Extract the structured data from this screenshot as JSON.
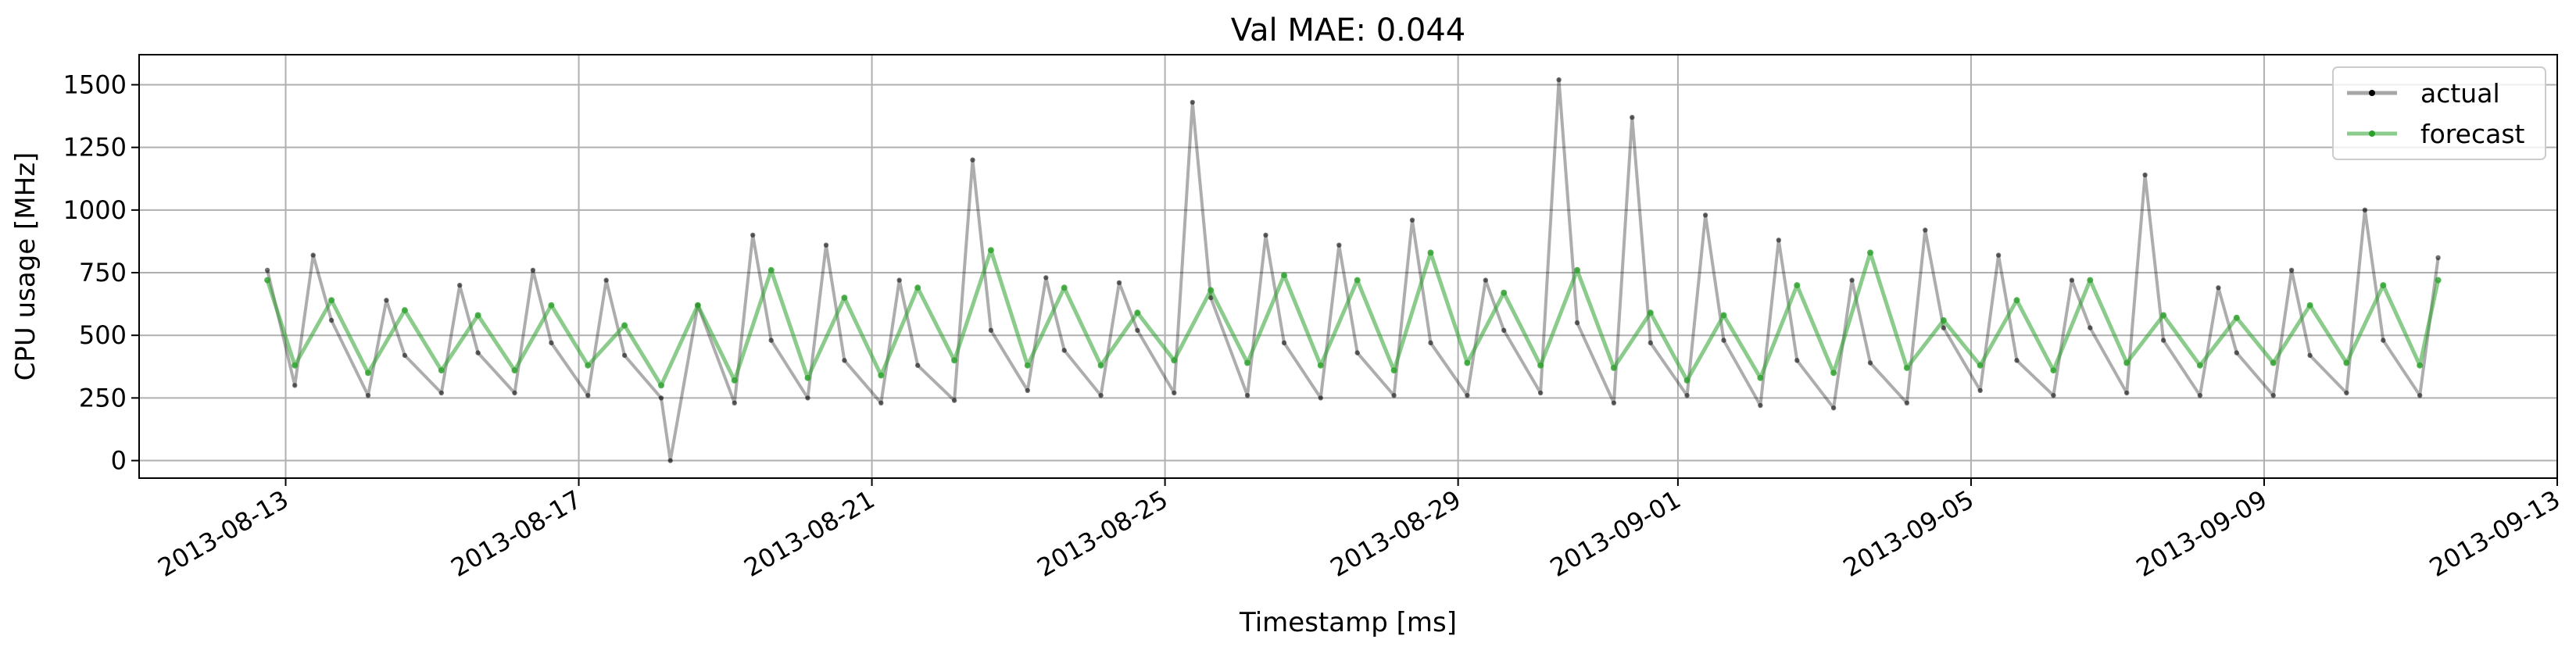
{
  "chart_data": {
    "type": "line",
    "title": "Val MAE: 0.044",
    "xlabel": "Timestamp [ms]",
    "ylabel": "CPU usage [MHz]",
    "xlim": [
      "2013-08-11",
      "2013-09-13"
    ],
    "ylim": [
      -70,
      1620
    ],
    "x_ticks": [
      "2013-08-13",
      "2013-08-17",
      "2013-08-21",
      "2013-08-25",
      "2013-08-29",
      "2013-09-01",
      "2013-09-05",
      "2013-09-09",
      "2013-09-13"
    ],
    "y_ticks": [
      0,
      250,
      500,
      750,
      1000,
      1250,
      1500
    ],
    "grid": true,
    "legend_position": "top-right",
    "series": [
      {
        "name": "actual",
        "color": "#000000",
        "x": [
          "2013-08-12T18:00",
          "2013-08-13T03:00",
          "2013-08-13T09:00",
          "2013-08-13T15:00",
          "2013-08-14T03:00",
          "2013-08-14T09:00",
          "2013-08-14T15:00",
          "2013-08-15T03:00",
          "2013-08-15T09:00",
          "2013-08-15T15:00",
          "2013-08-16T03:00",
          "2013-08-16T09:00",
          "2013-08-16T15:00",
          "2013-08-17T03:00",
          "2013-08-17T09:00",
          "2013-08-17T15:00",
          "2013-08-18T03:00",
          "2013-08-18T06:00",
          "2013-08-18T15:00",
          "2013-08-19T03:00",
          "2013-08-19T09:00",
          "2013-08-19T15:00",
          "2013-08-20T03:00",
          "2013-08-20T09:00",
          "2013-08-20T15:00",
          "2013-08-21T03:00",
          "2013-08-21T09:00",
          "2013-08-21T15:00",
          "2013-08-22T03:00",
          "2013-08-22T09:00",
          "2013-08-22T15:00",
          "2013-08-23T03:00",
          "2013-08-23T09:00",
          "2013-08-23T15:00",
          "2013-08-24T03:00",
          "2013-08-24T09:00",
          "2013-08-24T15:00",
          "2013-08-25T03:00",
          "2013-08-25T09:00",
          "2013-08-25T15:00",
          "2013-08-26T03:00",
          "2013-08-26T09:00",
          "2013-08-26T15:00",
          "2013-08-27T03:00",
          "2013-08-27T09:00",
          "2013-08-27T15:00",
          "2013-08-28T03:00",
          "2013-08-28T09:00",
          "2013-08-28T15:00",
          "2013-08-29T03:00",
          "2013-08-29T09:00",
          "2013-08-29T15:00",
          "2013-08-30T03:00",
          "2013-08-30T09:00",
          "2013-08-30T15:00",
          "2013-08-31T03:00",
          "2013-08-31T09:00",
          "2013-08-31T15:00",
          "2013-09-01T03:00",
          "2013-09-01T09:00",
          "2013-09-01T15:00",
          "2013-09-02T03:00",
          "2013-09-02T09:00",
          "2013-09-02T15:00",
          "2013-09-03T03:00",
          "2013-09-03T09:00",
          "2013-09-03T15:00",
          "2013-09-04T03:00",
          "2013-09-04T09:00",
          "2013-09-04T15:00",
          "2013-09-05T03:00",
          "2013-09-05T09:00",
          "2013-09-05T15:00",
          "2013-09-06T03:00",
          "2013-09-06T09:00",
          "2013-09-06T15:00",
          "2013-09-07T03:00",
          "2013-09-07T09:00",
          "2013-09-07T15:00",
          "2013-09-08T03:00",
          "2013-09-08T09:00",
          "2013-09-08T15:00",
          "2013-09-09T03:00",
          "2013-09-09T09:00",
          "2013-09-09T15:00",
          "2013-09-10T03:00",
          "2013-09-10T09:00",
          "2013-09-10T15:00",
          "2013-09-11T03:00",
          "2013-09-11T09:00"
        ],
        "y": [
          760,
          300,
          820,
          560,
          260,
          640,
          420,
          270,
          700,
          430,
          270,
          760,
          470,
          260,
          720,
          420,
          250,
          0,
          620,
          230,
          900,
          480,
          250,
          860,
          400,
          230,
          720,
          380,
          240,
          1200,
          520,
          280,
          730,
          440,
          260,
          710,
          520,
          270,
          1430,
          650,
          260,
          900,
          470,
          250,
          860,
          430,
          260,
          960,
          470,
          260,
          720,
          520,
          270,
          1520,
          550,
          230,
          1370,
          470,
          260,
          980,
          480,
          220,
          880,
          400,
          210,
          720,
          390,
          230,
          920,
          530,
          280,
          820,
          400,
          260,
          720,
          530,
          270,
          1140,
          480,
          260,
          690,
          430,
          260,
          760,
          420,
          270,
          1000,
          480,
          260,
          810
        ]
      },
      {
        "name": "forecast",
        "color": "#2ca02c",
        "x": [
          "2013-08-12T18:00",
          "2013-08-13T03:00",
          "2013-08-13T15:00",
          "2013-08-14T03:00",
          "2013-08-14T15:00",
          "2013-08-15T03:00",
          "2013-08-15T15:00",
          "2013-08-16T03:00",
          "2013-08-16T15:00",
          "2013-08-17T03:00",
          "2013-08-17T15:00",
          "2013-08-18T03:00",
          "2013-08-18T15:00",
          "2013-08-19T03:00",
          "2013-08-19T15:00",
          "2013-08-20T03:00",
          "2013-08-20T15:00",
          "2013-08-21T03:00",
          "2013-08-21T15:00",
          "2013-08-22T03:00",
          "2013-08-22T15:00",
          "2013-08-23T03:00",
          "2013-08-23T15:00",
          "2013-08-24T03:00",
          "2013-08-24T15:00",
          "2013-08-25T03:00",
          "2013-08-25T15:00",
          "2013-08-26T03:00",
          "2013-08-26T15:00",
          "2013-08-27T03:00",
          "2013-08-27T15:00",
          "2013-08-28T03:00",
          "2013-08-28T15:00",
          "2013-08-29T03:00",
          "2013-08-29T15:00",
          "2013-08-30T03:00",
          "2013-08-30T15:00",
          "2013-08-31T03:00",
          "2013-08-31T15:00",
          "2013-09-01T03:00",
          "2013-09-01T15:00",
          "2013-09-02T03:00",
          "2013-09-02T15:00",
          "2013-09-03T03:00",
          "2013-09-03T15:00",
          "2013-09-04T03:00",
          "2013-09-04T15:00",
          "2013-09-05T03:00",
          "2013-09-05T15:00",
          "2013-09-06T03:00",
          "2013-09-06T15:00",
          "2013-09-07T03:00",
          "2013-09-07T15:00",
          "2013-09-08T03:00",
          "2013-09-08T15:00",
          "2013-09-09T03:00",
          "2013-09-09T15:00",
          "2013-09-10T03:00",
          "2013-09-10T15:00",
          "2013-09-11T03:00",
          "2013-09-11T09:00"
        ],
        "y": [
          720,
          380,
          640,
          350,
          600,
          360,
          580,
          360,
          620,
          380,
          540,
          300,
          620,
          320,
          760,
          330,
          650,
          340,
          690,
          400,
          840,
          380,
          690,
          380,
          590,
          400,
          680,
          390,
          740,
          380,
          720,
          360,
          830,
          390,
          670,
          380,
          760,
          370,
          590,
          320,
          580,
          330,
          700,
          350,
          830,
          370,
          560,
          380,
          640,
          360,
          720,
          390,
          580,
          380,
          570,
          390,
          620,
          390,
          700,
          380,
          720
        ]
      }
    ]
  }
}
